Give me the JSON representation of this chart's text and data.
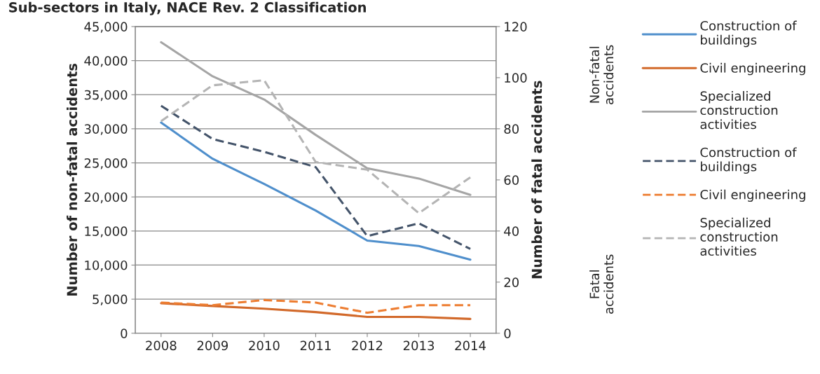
{
  "chart_data": {
    "type": "line",
    "title": "Sub-sectors in Italy, NACE Rev. 2 Classification",
    "ylabel": "Number of non-fatal accidents",
    "y2label": "Number of fatal accidents",
    "categories": [
      "2008",
      "2009",
      "2010",
      "2011",
      "2012",
      "2013",
      "2014"
    ],
    "series": [
      {
        "name": "Construction of buildings",
        "color": "#4f8fcc",
        "line_style": "solid",
        "values": [
          30900,
          25600,
          21900,
          18000,
          13600,
          12800,
          10800
        ]
      },
      {
        "name": "Civil engineering",
        "color": "#d2692a",
        "line_style": "solid",
        "values": [
          4400,
          4000,
          3600,
          3100,
          2400,
          2400,
          2100
        ]
      },
      {
        "name": "Specialized construction activities",
        "color": "#a5a5a5",
        "line_style": "solid",
        "values": [
          42700,
          37700,
          34300,
          29100,
          24200,
          22700,
          20300
        ]
      },
      {
        "name": "Construction of buildings",
        "color": "#44546a",
        "line_style": "dashed",
        "axis": "y2",
        "values": [
          89,
          76,
          71,
          65,
          38,
          43,
          33
        ]
      },
      {
        "name": "Civil engineering",
        "color": "#ed7d31",
        "line_style": "dashed",
        "axis": "y2",
        "values": [
          12,
          11,
          13,
          12,
          8,
          11,
          11
        ]
      },
      {
        "name": "Specialized construction activities",
        "color": "#b4b4b4",
        "line_style": "dashed",
        "axis": "y2",
        "values": [
          83,
          97,
          99,
          67,
          64,
          47,
          61
        ]
      }
    ],
    "ylim": [
      0,
      45000
    ],
    "yticks": [
      {
        "value": 0,
        "label": "0"
      },
      {
        "value": 5000,
        "label": "5,000"
      },
      {
        "value": 10000,
        "label": "10,000"
      },
      {
        "value": 15000,
        "label": "15,000"
      },
      {
        "value": 20000,
        "label": "20,000"
      },
      {
        "value": 25000,
        "label": "25,000"
      },
      {
        "value": 30000,
        "label": "30,000"
      },
      {
        "value": 35000,
        "label": "35,000"
      },
      {
        "value": 40000,
        "label": "40,000"
      },
      {
        "value": 45000,
        "label": "45,000"
      }
    ],
    "y2lim": [
      0,
      120
    ],
    "y2ticks": [
      0,
      20,
      40,
      60,
      80,
      100,
      120
    ],
    "grid": "y",
    "legend": "right",
    "annotations": [
      "Non-fatal accidents",
      "Fatal accidents"
    ]
  }
}
